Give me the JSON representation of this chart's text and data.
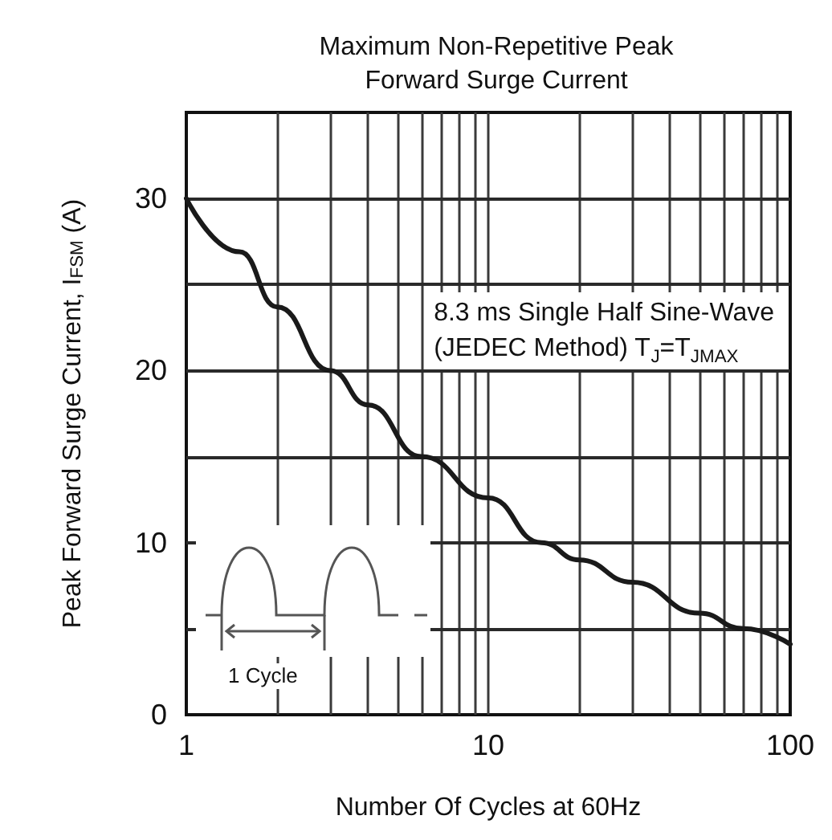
{
  "chart_data": {
    "type": "line",
    "title": "Maximum Non-Repetitive Peak\nForward Surge Current",
    "xlabel": "Number Of Cycles at 60Hz",
    "ylabel": "Peak Forward Surge Current, I$_{FSM}$ (A)",
    "annotations": [
      "8.3 ms Single Half Sine-Wave\n(JEDEC Method) T$_{J}$=T$_{JMAX}$",
      "1 Cycle"
    ],
    "log": "x",
    "grid": true,
    "marker": "none",
    "line_style": "solid",
    "xlim": [
      1,
      100
    ],
    "ylim": [
      0,
      35
    ],
    "xticks": [
      1,
      {
        "value": 2,
        "label": null
      },
      {
        "value": 3,
        "label": null
      },
      {
        "value": 4,
        "label": null
      },
      {
        "value": 5,
        "label": null
      },
      {
        "value": 6,
        "label": null
      },
      {
        "value": 7,
        "label": null
      },
      {
        "value": 8,
        "label": null
      },
      {
        "value": 9,
        "label": null
      },
      10,
      {
        "value": 20,
        "label": null
      },
      {
        "value": 30,
        "label": null
      },
      {
        "value": 40,
        "label": null
      },
      {
        "value": 50,
        "label": null
      },
      {
        "value": 60,
        "label": null
      },
      {
        "value": 70,
        "label": null
      },
      {
        "value": 80,
        "label": null
      },
      {
        "value": 90,
        "label": null
      },
      100
    ],
    "yticks": [
      0,
      {
        "value": 5,
        "label": null
      },
      10,
      {
        "value": 15,
        "label": null
      },
      20,
      {
        "value": 25,
        "label": null
      },
      30
    ],
    "x": [
      1,
      1.5,
      2,
      3,
      4,
      6,
      10,
      15,
      20,
      30,
      50,
      70,
      100
    ],
    "series": [
      {
        "color": "#1a1a1a",
        "values": [
          30,
          26.9,
          23.7,
          20,
          18,
          15,
          12.6,
          10,
          9,
          7.7,
          5.9,
          5,
          4.1
        ]
      }
    ]
  }
}
